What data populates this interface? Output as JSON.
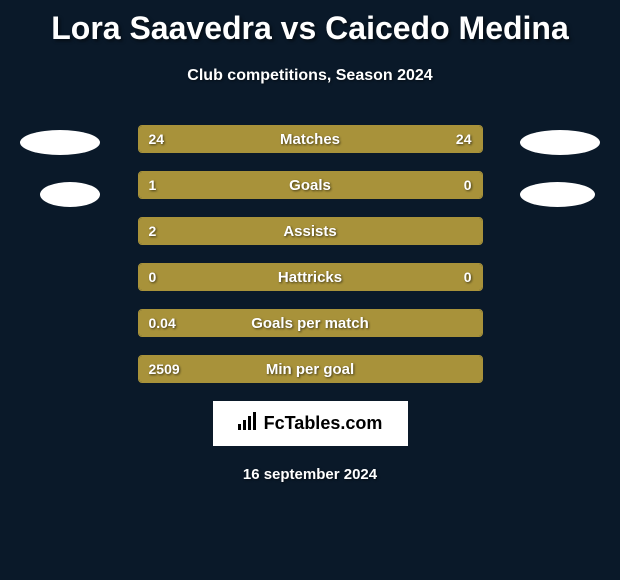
{
  "title": "Lora Saavedra vs Caicedo Medina",
  "subtitle": "Club competitions, Season 2024",
  "date": "16 september 2024",
  "logo_text": "FcTables.com",
  "colors": {
    "background": "#0a1929",
    "bar_fill": "#a8923a",
    "bar_border": "#a8923a",
    "text": "#ffffff",
    "logo_bg": "#ffffff"
  },
  "stats": [
    {
      "label": "Matches",
      "left_value": "24",
      "right_value": "24",
      "left_width_pct": 50,
      "right_width_pct": 50
    },
    {
      "label": "Goals",
      "left_value": "1",
      "right_value": "0",
      "left_width_pct": 75,
      "right_width_pct": 25
    },
    {
      "label": "Assists",
      "left_value": "2",
      "right_value": "",
      "left_width_pct": 100,
      "right_width_pct": 0
    },
    {
      "label": "Hattricks",
      "left_value": "0",
      "right_value": "0",
      "left_width_pct": 50,
      "right_width_pct": 50
    },
    {
      "label": "Goals per match",
      "left_value": "0.04",
      "right_value": "",
      "left_width_pct": 100,
      "right_width_pct": 0
    },
    {
      "label": "Min per goal",
      "left_value": "2509",
      "right_value": "",
      "left_width_pct": 100,
      "right_width_pct": 0
    }
  ]
}
